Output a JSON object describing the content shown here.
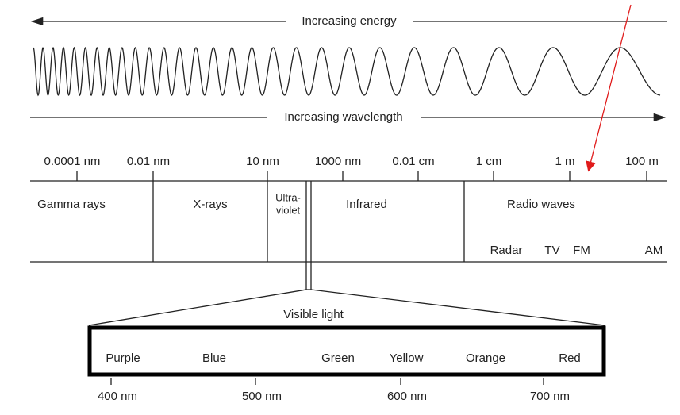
{
  "arrows": {
    "energy": "Increasing energy",
    "wavelength": "Increasing wavelength"
  },
  "scale_labels": [
    "0.0001 nm",
    "0.01 nm",
    "10 nm",
    "1000 nm",
    "0.01 cm",
    "1 cm",
    "1 m",
    "100 m"
  ],
  "regions": [
    {
      "lines": [
        "Gamma rays"
      ]
    },
    {
      "lines": [
        "X-rays"
      ]
    },
    {
      "lines": [
        "Ultra-",
        "violet"
      ]
    },
    {
      "lines": [
        "Infrared"
      ]
    },
    {
      "lines": [
        "Radio waves"
      ]
    }
  ],
  "radio_bands": [
    "Radar",
    "TV",
    "FM",
    "AM"
  ],
  "visible_light": {
    "title": "Visible light",
    "colors": [
      "Purple",
      "Blue",
      "Green",
      "Yellow",
      "Orange",
      "Red"
    ],
    "scale": [
      "400 nm",
      "500 nm",
      "600 nm",
      "700 nm"
    ]
  }
}
